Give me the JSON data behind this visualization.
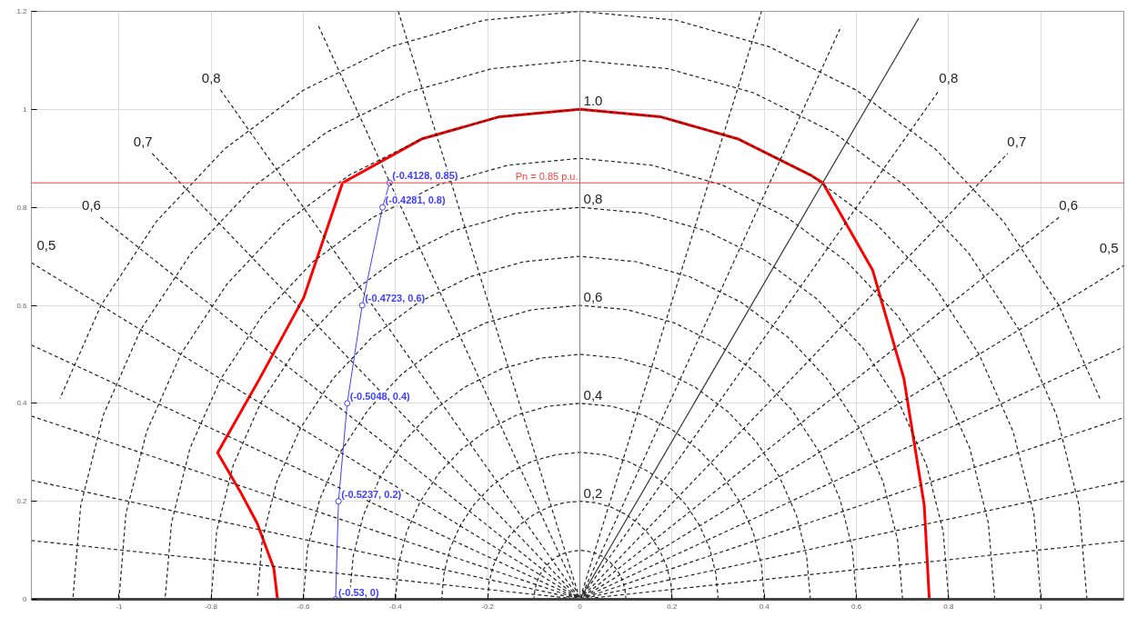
{
  "chart_data": {
    "type": "line",
    "xlim": [
      -1.19,
      1.18
    ],
    "ylim": [
      0,
      1.2
    ],
    "xticks": [
      -1,
      -0.8,
      -0.6,
      -0.4,
      -0.2,
      0,
      0.2,
      0.4,
      0.6,
      0.8,
      1
    ],
    "yticks": [
      0,
      0.2,
      0.4,
      0.6,
      0.8,
      1,
      1.2
    ],
    "grid": true,
    "ref_lines": [
      {
        "axis": "x",
        "value": 0,
        "color": "#808080"
      },
      {
        "axis": "y",
        "value": 0.85,
        "label": "Pn = 0.85 p.u.",
        "color": "#ff4040"
      }
    ],
    "series": [
      {
        "color": "#ff0000",
        "line_style": "solid",
        "x": [
          -0.656,
          -0.664,
          -0.7,
          -0.737,
          -0.786,
          -0.695,
          -0.599,
          -0.515,
          -0.342,
          -0.174,
          0,
          0.174,
          0.342,
          0.5,
          0.527,
          0.635,
          0.703,
          0.747,
          0.758
        ],
        "values": [
          0,
          0.063,
          0.155,
          0.22,
          0.299,
          0.45,
          0.616,
          0.85,
          0.94,
          0.985,
          1,
          0.985,
          0.94,
          0.866,
          0.85,
          0.672,
          0.45,
          0.192,
          0
        ]
      },
      {
        "color": "#4040ff",
        "line_style": "solid",
        "marker": "circle",
        "x": [
          -0.53,
          -0.5237,
          -0.5048,
          -0.4723,
          -0.4281,
          -0.4128
        ],
        "values": [
          0,
          0.2,
          0.4,
          0.6,
          0.8,
          0.85
        ],
        "value_labels": [
          "(-0.53, 0)",
          "(-0.5237, 0.2)",
          "(-0.5048, 0.4)",
          "(-0.4723, 0.6)",
          "(-0.4281, 0.8)",
          "(-0.4128, 0.85)"
        ]
      },
      {
        "color": "#333333",
        "line_style": "solid",
        "x": [
          0,
          0.735
        ],
        "values": [
          0,
          1.186
        ]
      },
      {
        "color": "#222222",
        "line_style": "dashed",
        "x": [
          0.1,
          0.098,
          0.094,
          0.087,
          0.077,
          0.064,
          0.05,
          0.034,
          0.017,
          0,
          -0.017,
          -0.034,
          -0.05,
          -0.064,
          -0.077,
          -0.087,
          -0.094,
          -0.098,
          -0.1
        ],
        "values": [
          0,
          0.017,
          0.034,
          0.05,
          0.064,
          0.077,
          0.087,
          0.094,
          0.098,
          0.1,
          0.098,
          0.094,
          0.087,
          0.077,
          0.064,
          0.05,
          0.034,
          0.017,
          0
        ]
      },
      {
        "name": "0,2",
        "color": "#222222",
        "line_style": "dashed",
        "x": [
          0.2,
          0.197,
          0.188,
          0.173,
          0.153,
          0.129,
          0.1,
          0.068,
          0.035,
          0,
          -0.035,
          -0.068,
          -0.1,
          -0.129,
          -0.153,
          -0.173,
          -0.188,
          -0.197,
          -0.2
        ],
        "values": [
          0,
          0.035,
          0.068,
          0.1,
          0.129,
          0.153,
          0.173,
          0.188,
          0.197,
          0.2,
          0.197,
          0.188,
          0.173,
          0.153,
          0.129,
          0.1,
          0.068,
          0.035,
          0
        ]
      },
      {
        "color": "#222222",
        "line_style": "dashed",
        "x": [
          0.3,
          0.295,
          0.282,
          0.26,
          0.23,
          0.193,
          0.15,
          0.103,
          0.052,
          0,
          -0.052,
          -0.103,
          -0.15,
          -0.193,
          -0.23,
          -0.26,
          -0.282,
          -0.295,
          -0.3
        ],
        "values": [
          0,
          0.052,
          0.103,
          0.15,
          0.193,
          0.23,
          0.26,
          0.282,
          0.295,
          0.3,
          0.295,
          0.282,
          0.26,
          0.23,
          0.193,
          0.15,
          0.103,
          0.052,
          0
        ]
      },
      {
        "name": "0,4",
        "color": "#222222",
        "line_style": "dashed",
        "x": [
          0.4,
          0.394,
          0.376,
          0.346,
          0.306,
          0.257,
          0.2,
          0.137,
          0.069,
          0,
          -0.069,
          -0.137,
          -0.2,
          -0.257,
          -0.306,
          -0.346,
          -0.376,
          -0.394,
          -0.4
        ],
        "values": [
          0,
          0.069,
          0.137,
          0.2,
          0.257,
          0.306,
          0.346,
          0.376,
          0.394,
          0.4,
          0.394,
          0.376,
          0.346,
          0.306,
          0.257,
          0.2,
          0.137,
          0.069,
          0
        ]
      },
      {
        "color": "#222222",
        "line_style": "dashed",
        "x": [
          0.5,
          0.492,
          0.47,
          0.433,
          0.383,
          0.321,
          0.25,
          0.171,
          0.087,
          0,
          -0.087,
          -0.171,
          -0.25,
          -0.321,
          -0.383,
          -0.433,
          -0.47,
          -0.492,
          -0.5
        ],
        "values": [
          0,
          0.087,
          0.171,
          0.25,
          0.321,
          0.383,
          0.433,
          0.47,
          0.492,
          0.5,
          0.492,
          0.47,
          0.433,
          0.383,
          0.321,
          0.25,
          0.171,
          0.087,
          0
        ]
      },
      {
        "name": "0,6",
        "color": "#222222",
        "line_style": "dashed",
        "x": [
          0.6,
          0.591,
          0.564,
          0.52,
          0.46,
          0.386,
          0.3,
          0.205,
          0.104,
          0,
          -0.104,
          -0.205,
          -0.3,
          -0.386,
          -0.46,
          -0.52,
          -0.564,
          -0.591,
          -0.6
        ],
        "values": [
          0,
          0.104,
          0.205,
          0.3,
          0.386,
          0.46,
          0.52,
          0.564,
          0.591,
          0.6,
          0.591,
          0.564,
          0.52,
          0.46,
          0.386,
          0.3,
          0.205,
          0.104,
          0
        ]
      },
      {
        "color": "#222222",
        "line_style": "dashed",
        "x": [
          0.7,
          0.689,
          0.658,
          0.606,
          0.536,
          0.45,
          0.35,
          0.239,
          0.122,
          0,
          -0.122,
          -0.239,
          -0.35,
          -0.45,
          -0.536,
          -0.606,
          -0.658,
          -0.689,
          -0.7
        ],
        "values": [
          0,
          0.122,
          0.239,
          0.35,
          0.45,
          0.536,
          0.606,
          0.658,
          0.689,
          0.7,
          0.689,
          0.658,
          0.606,
          0.536,
          0.45,
          0.35,
          0.239,
          0.122,
          0
        ]
      },
      {
        "name": "0,8",
        "color": "#222222",
        "line_style": "dashed",
        "x": [
          0.8,
          0.788,
          0.752,
          0.693,
          0.613,
          0.514,
          0.4,
          0.274,
          0.139,
          0,
          -0.139,
          -0.274,
          -0.4,
          -0.514,
          -0.613,
          -0.693,
          -0.752,
          -0.788,
          -0.8
        ],
        "values": [
          0,
          0.139,
          0.274,
          0.4,
          0.514,
          0.613,
          0.693,
          0.752,
          0.788,
          0.8,
          0.788,
          0.752,
          0.693,
          0.613,
          0.514,
          0.4,
          0.274,
          0.139,
          0
        ]
      },
      {
        "color": "#222222",
        "line_style": "dashed",
        "x": [
          0.9,
          0.886,
          0.846,
          0.779,
          0.689,
          0.579,
          0.45,
          0.308,
          0.156,
          0,
          -0.156,
          -0.308,
          -0.45,
          -0.579,
          -0.689,
          -0.779,
          -0.846,
          -0.886,
          -0.9
        ],
        "values": [
          0,
          0.156,
          0.308,
          0.45,
          0.579,
          0.689,
          0.779,
          0.846,
          0.886,
          0.9,
          0.886,
          0.846,
          0.779,
          0.689,
          0.579,
          0.45,
          0.308,
          0.156,
          0
        ]
      },
      {
        "name": "1.0",
        "color": "#222222",
        "line_style": "dashed",
        "x": [
          1,
          0.985,
          0.94,
          0.866,
          0.766,
          0.643,
          0.5,
          0.342,
          0.174,
          0,
          -0.174,
          -0.342,
          -0.5,
          -0.643,
          -0.766,
          -0.866,
          -0.94,
          -0.985,
          -1
        ],
        "values": [
          0,
          0.174,
          0.342,
          0.5,
          0.643,
          0.766,
          0.866,
          0.94,
          0.985,
          1,
          0.985,
          0.94,
          0.866,
          0.766,
          0.643,
          0.5,
          0.342,
          0.174,
          0
        ]
      },
      {
        "color": "#222222",
        "line_style": "dashed",
        "x": [
          1.1,
          1.083,
          1.034,
          0.953,
          0.843,
          0.707,
          0.55,
          0.376,
          0.191,
          0,
          -0.191,
          -0.376,
          -0.55,
          -0.707,
          -0.843,
          -0.953,
          -1.034,
          -1.083,
          -1.1
        ],
        "values": [
          0,
          0.191,
          0.376,
          0.55,
          0.707,
          0.843,
          0.953,
          1.034,
          1.083,
          1.1,
          1.083,
          1.034,
          0.953,
          0.843,
          0.707,
          0.55,
          0.376,
          0.191,
          0
        ]
      },
      {
        "color": "#222222",
        "line_style": "dashed",
        "x": [
          1.128,
          1.039,
          0.919,
          0.771,
          0.6,
          0.41,
          0.208,
          0,
          -0.208,
          -0.41,
          -0.6,
          -0.771,
          -0.919,
          -1.039,
          -1.128
        ],
        "values": [
          0.41,
          0.6,
          0.771,
          0.919,
          1.039,
          1.128,
          1.182,
          1.2,
          1.182,
          1.128,
          1.039,
          0.919,
          0.771,
          0.6,
          0.41
        ]
      },
      {
        "color": "#222222",
        "line_style": "dashed",
        "x": [
          -0.394,
          0,
          0.394
        ],
        "values": [
          1.2,
          0,
          1.2
        ]
      },
      {
        "color": "#222222",
        "line_style": "dashed",
        "x": [
          -0.567,
          0,
          0.567
        ],
        "values": [
          1.17,
          0,
          1.17
        ]
      },
      {
        "name": "0,8",
        "color": "#222222",
        "line_style": "dashed",
        "x": [
          -0.78,
          0,
          0.78
        ],
        "values": [
          1.04,
          0,
          1.04
        ]
      },
      {
        "name": "0,7",
        "color": "#222222",
        "line_style": "dashed",
        "x": [
          -0.928,
          0,
          0.928
        ],
        "values": [
          0.91,
          0,
          0.91
        ]
      },
      {
        "name": "0,6",
        "color": "#222222",
        "line_style": "dashed",
        "x": [
          -1.04,
          0,
          1.04
        ],
        "values": [
          0.78,
          0,
          0.78
        ]
      },
      {
        "name": "0,5",
        "color": "#222222",
        "line_style": "dashed",
        "x": [
          -1.19,
          0,
          1.18
        ],
        "values": [
          0.687,
          0,
          0.681
        ]
      },
      {
        "color": "#222222",
        "line_style": "dashed",
        "x": [
          -1.19,
          0,
          1.18
        ],
        "values": [
          0.519,
          0,
          0.515
        ]
      },
      {
        "color": "#222222",
        "line_style": "dashed",
        "x": [
          -1.19,
          0,
          1.18
        ],
        "values": [
          0.374,
          0,
          0.371
        ]
      },
      {
        "color": "#222222",
        "line_style": "dashed",
        "x": [
          -1.19,
          0,
          1.18
        ],
        "values": [
          0.243,
          0,
          0.241
        ]
      },
      {
        "color": "#222222",
        "line_style": "dashed",
        "x": [
          -1.19,
          0,
          1.18
        ],
        "values": [
          0.12,
          0,
          0.119
        ]
      }
    ]
  }
}
